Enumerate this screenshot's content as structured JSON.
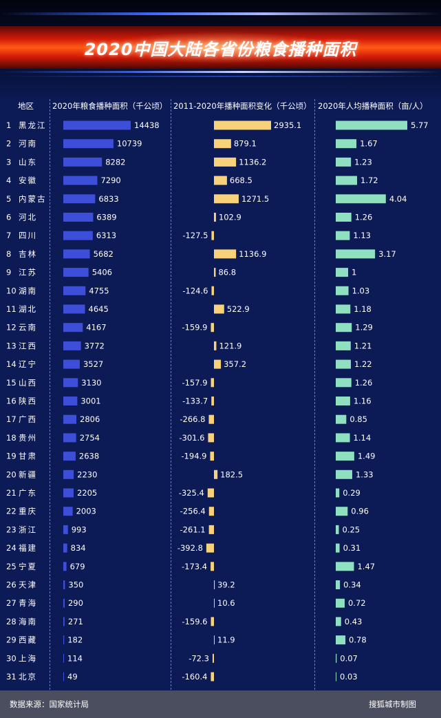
{
  "title": "2020中国大陆各省份粮食播种面积",
  "headers": {
    "region": "地区",
    "area": "2020年粮食播种面积（千公顷）",
    "change": "2011-2020年播种面积变化（千公顷）",
    "per_capita": "2020年人均播种面积（亩/人）"
  },
  "footer": {
    "source": "数据来源：国家统计局",
    "credit": "搜狐城市制图"
  },
  "colors": {
    "area": "#3d4fd8",
    "change": "#f7d27a",
    "per_capita": "#8ee0c0",
    "background": "#0c1a56"
  },
  "chart_data": {
    "type": "bar",
    "categories": [
      "黑龙江",
      "河南",
      "山东",
      "安徽",
      "内蒙古",
      "河北",
      "四川",
      "吉林",
      "江苏",
      "湖南",
      "湖北",
      "云南",
      "江西",
      "辽宁",
      "山西",
      "陕西",
      "广西",
      "贵州",
      "甘肃",
      "新疆",
      "广东",
      "重庆",
      "浙江",
      "福建",
      "宁夏",
      "天津",
      "青海",
      "海南",
      "西藏",
      "上海",
      "北京"
    ],
    "ranks": [
      "1",
      "2",
      "3",
      "4",
      "5",
      "6",
      "7",
      "8",
      "9",
      "10",
      "11",
      "12",
      "13",
      "14",
      "15",
      "16",
      "17",
      "18",
      "19",
      "20",
      "21",
      "22",
      "23",
      "24",
      "25",
      "26",
      "27",
      "28",
      "29",
      "30",
      "31"
    ],
    "series": [
      {
        "name": "2020年粮食播种面积（千公顷）",
        "values": [
          14438,
          10739,
          8282,
          7290,
          6833,
          6389,
          6313,
          5682,
          5406,
          4755,
          4645,
          4167,
          3772,
          3527,
          3130,
          3001,
          2806,
          2754,
          2638,
          2230,
          2205,
          2003,
          993,
          834,
          679,
          350,
          290,
          271,
          182,
          114,
          49
        ],
        "labels": [
          "14438",
          "10739",
          "8282",
          "7290",
          "6833",
          "6389",
          "6313",
          "5682",
          "5406",
          "4755",
          "4645",
          "4167",
          "3772",
          "3527",
          "3130",
          "3001",
          "2806",
          "2754",
          "2638",
          "2230",
          "2205",
          "2003",
          "993",
          "834",
          "679",
          "350",
          "290",
          "271",
          "182",
          "114",
          "49"
        ]
      },
      {
        "name": "2011-2020年播种面积变化（千公顷）",
        "values": [
          2935.1,
          879.1,
          1136.2,
          668.5,
          1271.5,
          102.9,
          -127.5,
          1136.9,
          86.8,
          -124.6,
          522.9,
          -159.9,
          121.9,
          357.2,
          -157.9,
          -133.7,
          -266.8,
          -301.6,
          -194.9,
          182.5,
          -325.4,
          -256.4,
          -261.1,
          -392.8,
          -173.4,
          39.2,
          10.6,
          -159.6,
          11.9,
          -72.3,
          -160.4
        ],
        "labels": [
          "2935.1",
          "879.1",
          "1136.2",
          "668.5",
          "1271.5",
          "102.9",
          "-127.5",
          "1136.9",
          "86.8",
          "-124.6",
          "522.9",
          "-159.9",
          "121.9",
          "357.2",
          "-157.9",
          "-133.7",
          "-266.8",
          "-301.6",
          "-194.9",
          "182.5",
          "-325.4",
          "-256.4",
          "-261.1",
          "-392.8",
          "-173.4",
          "39.2",
          "10.6",
          "-159.6",
          "11.9",
          "-72.3",
          "-160.4"
        ]
      },
      {
        "name": "2020年人均播种面积（亩/人）",
        "values": [
          5.77,
          1.67,
          1.23,
          1.72,
          4.04,
          1.26,
          1.13,
          3.17,
          1,
          1.03,
          1.18,
          1.29,
          1.21,
          1.22,
          1.26,
          1.16,
          0.85,
          1.14,
          1.49,
          1.33,
          0.29,
          0.96,
          0.25,
          0.31,
          1.47,
          0.34,
          0.72,
          0.43,
          0.78,
          0.07,
          0.03
        ],
        "labels": [
          "5.77",
          "1.67",
          "1.23",
          "1.72",
          "4.04",
          "1.26",
          "1.13",
          "3.17",
          "1",
          "1.03",
          "1.18",
          "1.29",
          "1.21",
          "1.22",
          "1.26",
          "1.16",
          "0.85",
          "1.14",
          "1.49",
          "1.33",
          "0.29",
          "0.96",
          "0.25",
          "0.31",
          "1.47",
          "0.34",
          "0.72",
          "0.43",
          "0.78",
          "0.07",
          "0.03"
        ]
      }
    ]
  }
}
